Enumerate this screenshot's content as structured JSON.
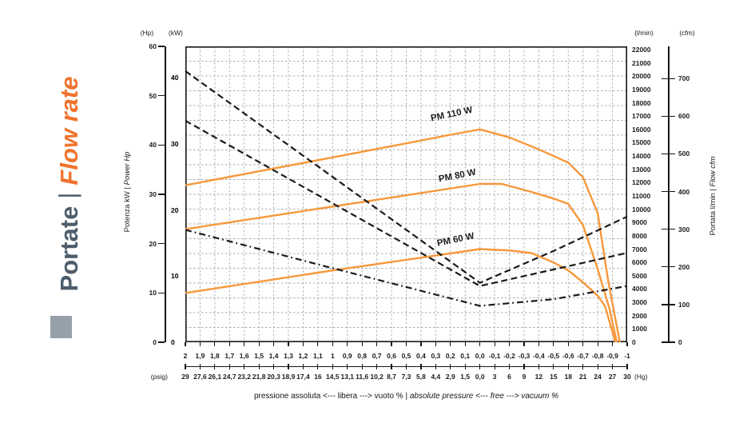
{
  "page": {
    "title_it": "Portate",
    "title_sep": "|",
    "title_en": "Flow rate"
  },
  "colors": {
    "title_orange": "#f0732d",
    "curve_orange": "#f7983a",
    "title_slate": "#4d5d6b",
    "square_gray": "#96a0ab",
    "grid_gray": "#ababab",
    "ink": "#1b1b1b"
  },
  "axes": {
    "top_left_units": [
      "(Hp)",
      "(kW)"
    ],
    "top_right_units": [
      "(l/min)",
      "(cfm)"
    ],
    "hp_ticks": [
      "60",
      "50",
      "40",
      "30",
      "20",
      "10",
      "0"
    ],
    "kw_ticks": [
      "40",
      "30",
      "20",
      "10",
      "0"
    ],
    "lmin_ticks": [
      "22000",
      "21000",
      "20000",
      "19000",
      "18000",
      "17000",
      "16000",
      "15000",
      "14000",
      "13000",
      "12000",
      "11000",
      "10000",
      "9000",
      "8000",
      "7000",
      "6000",
      "5000",
      "4000",
      "3000",
      "2000",
      "1000",
      "0"
    ],
    "cfm_ticks": [
      "700",
      "600",
      "500",
      "400",
      "300",
      "200",
      "100",
      "0"
    ],
    "left_axis_label": {
      "it": "Potenza kW",
      "sep": "|",
      "en": "Power Hp"
    },
    "right_axis_label": {
      "it": "Portata l/min",
      "sep": "|",
      "en": "Flow cfm"
    },
    "x_bar_ticks": [
      "2",
      "1,9",
      "1,8",
      "1,7",
      "1,6",
      "1,5",
      "1,4",
      "1,3",
      "1,2",
      "1,1",
      "1",
      "0,9",
      "0,8",
      "0,7",
      "0,6",
      "0,5",
      "0,4",
      "0,3",
      "0,2",
      "0,1",
      "0,0",
      "-0,1",
      "-0,2",
      "-0,3",
      "-0,4",
      "-0,5",
      "-0,6",
      "-0,7",
      "-0,8",
      "-0,9",
      "-1"
    ],
    "x_psig_hg_ticks": [
      "29",
      "27,6",
      "26,1",
      "24,7",
      "23,2",
      "21,8",
      "20,3",
      "18,9",
      "17,4",
      "16",
      "14,5",
      "13,1",
      "11,6",
      "10,2",
      "8,7",
      "7,3",
      "5,8",
      "4,4",
      "2,9",
      "1,5",
      "0,0",
      "3",
      "6",
      "9",
      "12",
      "15",
      "18",
      "21",
      "24",
      "27",
      "30"
    ],
    "x_left_unit": "(psig)",
    "x_right_unit": "(Hg)"
  },
  "caption": {
    "it": "pressione assoluta <--- libera --->  vuoto %",
    "sep": " | ",
    "en": "absolute pressure <--- free --->  vacuum %"
  },
  "chart_data": {
    "type": "line",
    "title": "Portate | Flow rate",
    "x_axis": {
      "label": "pressione assoluta / vuoto % (bar)",
      "range": [
        2,
        -1
      ],
      "tick_step": 0.1
    },
    "y_left": {
      "label": "Potenza kW | Power Hp",
      "units": [
        "Hp",
        "kW"
      ],
      "range_hp": [
        0,
        60
      ],
      "kw_tick_values": [
        0,
        10,
        20,
        30,
        40
      ]
    },
    "y_right": {
      "label": "Portata l/min | Flow cfm",
      "units": [
        "l/min",
        "cfm"
      ],
      "range_lmin": [
        0,
        22000
      ],
      "cfm_tick_values": [
        0,
        100,
        200,
        300,
        400,
        500,
        600,
        700
      ]
    },
    "grid": {
      "x_divisions": 30,
      "y_divisions": 20
    },
    "series": [
      {
        "name": "PM 110 W",
        "role": "flow",
        "unit": "l/min",
        "style": "solid",
        "points": [
          [
            2,
            11800
          ],
          [
            1.5,
            12850
          ],
          [
            1,
            13900
          ],
          [
            0.5,
            14950
          ],
          [
            0.2,
            15600
          ],
          [
            0,
            16000
          ],
          [
            -0.2,
            15400
          ],
          [
            -0.4,
            14500
          ],
          [
            -0.6,
            13500
          ],
          [
            -0.7,
            12400
          ],
          [
            -0.8,
            9700
          ],
          [
            -0.87,
            4700
          ],
          [
            -0.95,
            0
          ]
        ]
      },
      {
        "name": "PM 80 W",
        "role": "flow",
        "unit": "l/min",
        "style": "solid",
        "points": [
          [
            2,
            8500
          ],
          [
            1.5,
            9350
          ],
          [
            1,
            10200
          ],
          [
            0.5,
            11050
          ],
          [
            0,
            11900
          ],
          [
            -0.15,
            11900
          ],
          [
            -0.35,
            11300
          ],
          [
            -0.5,
            10800
          ],
          [
            -0.6,
            10400
          ],
          [
            -0.7,
            8800
          ],
          [
            -0.8,
            5500
          ],
          [
            -0.88,
            2500
          ],
          [
            -0.93,
            0
          ]
        ]
      },
      {
        "name": "PM 60 W",
        "role": "flow",
        "unit": "l/min",
        "style": "solid",
        "points": [
          [
            2,
            3700
          ],
          [
            1.5,
            4550
          ],
          [
            1,
            5400
          ],
          [
            0.5,
            6200
          ],
          [
            0,
            7000
          ],
          [
            -0.2,
            6900
          ],
          [
            -0.35,
            6700
          ],
          [
            -0.5,
            6000
          ],
          [
            -0.6,
            5400
          ],
          [
            -0.7,
            4500
          ],
          [
            -0.8,
            3500
          ],
          [
            -0.85,
            2700
          ],
          [
            -0.92,
            0
          ]
        ]
      },
      {
        "name": "PM 110 W power",
        "role": "power",
        "unit": "kW",
        "style": "dashed",
        "points": [
          [
            2,
            41
          ],
          [
            1,
            25
          ],
          [
            0,
            9
          ],
          [
            -0.5,
            13.8
          ],
          [
            -1,
            19
          ]
        ]
      },
      {
        "name": "PM 80 W power",
        "role": "power",
        "unit": "kW",
        "style": "dashed",
        "points": [
          [
            2,
            33.5
          ],
          [
            1,
            21
          ],
          [
            0,
            8.5
          ],
          [
            -0.5,
            11
          ],
          [
            -1,
            13.5
          ]
        ]
      },
      {
        "name": "PM 60 W power",
        "role": "power",
        "unit": "kW",
        "style": "dashdot",
        "points": [
          [
            2,
            17
          ],
          [
            1,
            11.2
          ],
          [
            0,
            5.5
          ],
          [
            -0.5,
            6.5
          ],
          [
            -1,
            8.5
          ]
        ]
      }
    ]
  }
}
